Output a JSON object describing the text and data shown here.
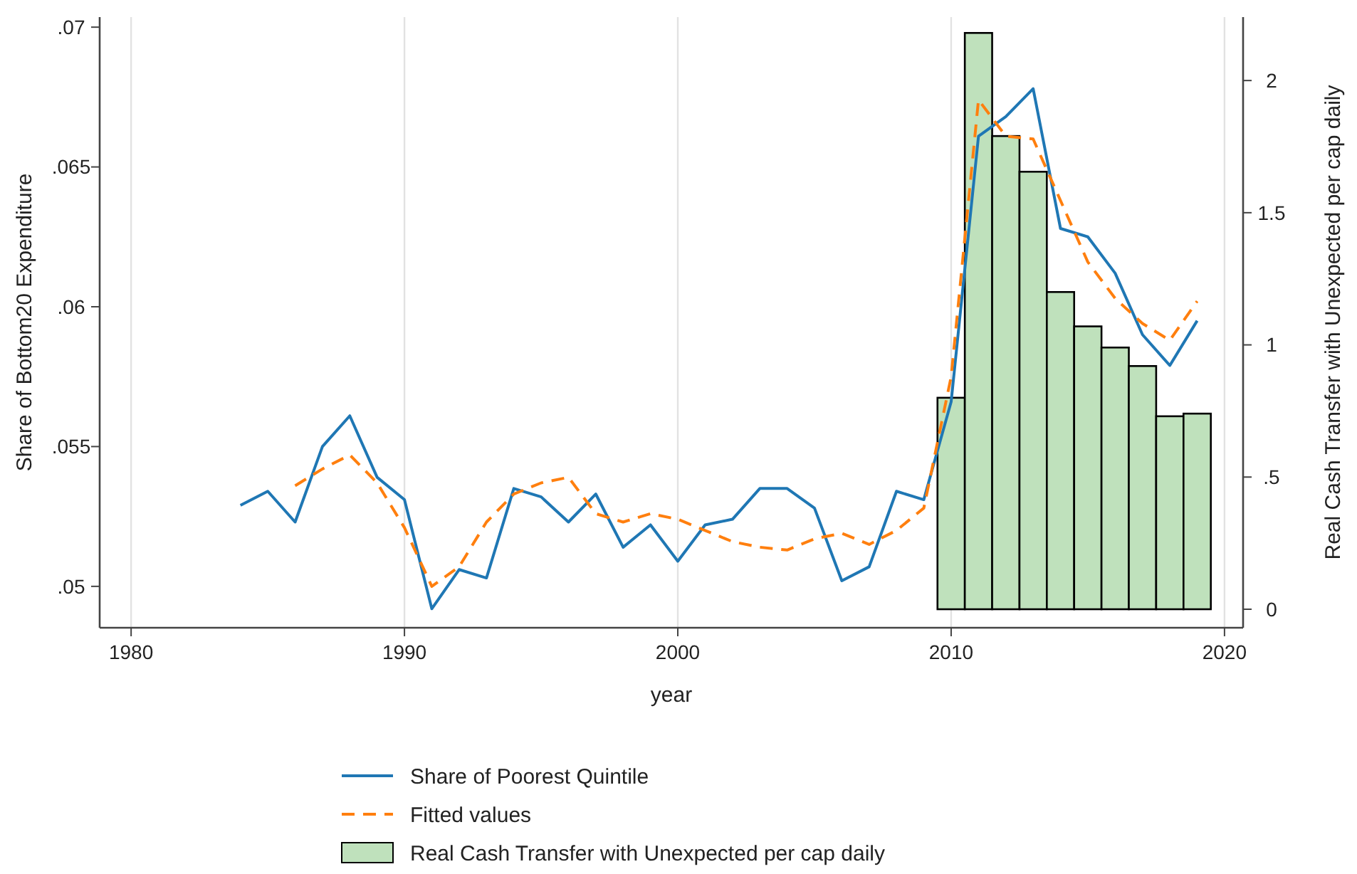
{
  "chart_data": {
    "type": "line",
    "xlabel": "year",
    "ylabel": "Share of Bottom20 Expenditure",
    "y2label": "Real Cash Transfer with Unexpected per cap daily",
    "xlim": [
      1978.85,
      2020.68
    ],
    "xticks": [
      1980,
      1990,
      2000,
      2010,
      2020
    ],
    "ylim": [
      0.04852,
      0.07036
    ],
    "yticks": [
      {
        "value": 0.05,
        "label": ".05"
      },
      {
        "value": 0.055,
        "label": ".055"
      },
      {
        "value": 0.06,
        "label": ".06"
      },
      {
        "value": 0.065,
        "label": ".065"
      },
      {
        "value": 0.07,
        "label": ".07"
      }
    ],
    "y2lim": [
      -0.07,
      2.24
    ],
    "y2ticks": [
      0,
      {
        "value": 0.5,
        "label": ".5"
      },
      1,
      {
        "value": 1.5,
        "label": "1.5"
      },
      2
    ],
    "grid": "x",
    "legend": "bottom",
    "marker": "none",
    "series": [
      {
        "name": "Share of Poorest Quintile",
        "color": "#1f77b4",
        "line_style": "solid",
        "x": [
          1984,
          1985,
          1986,
          1987,
          1988,
          1989,
          1990,
          1991,
          1992,
          1993,
          1994,
          1995,
          1996,
          1997,
          1998,
          1999,
          2000,
          2001,
          2002,
          2003,
          2004,
          2005,
          2006,
          2007,
          2008,
          2009,
          2010,
          2011,
          2012,
          2013,
          2014,
          2015,
          2016,
          2017,
          2018,
          2019
        ],
        "values": [
          0.0529,
          0.0534,
          0.0523,
          0.055,
          0.0561,
          0.0539,
          0.0531,
          0.0492,
          0.0506,
          0.0503,
          0.0535,
          0.0532,
          0.0523,
          0.0533,
          0.0514,
          0.0522,
          0.0509,
          0.0522,
          0.0524,
          0.0535,
          0.0535,
          0.0528,
          0.0502,
          0.0507,
          0.0534,
          0.0531,
          0.0566,
          0.0661,
          0.0668,
          0.0678,
          0.0628,
          0.0625,
          0.0612,
          0.059,
          0.0579,
          0.0595
        ]
      },
      {
        "name": "Fitted values",
        "color": "#ff7f0e",
        "line_style": "dashed",
        "x": [
          1986,
          1987,
          1988,
          1989,
          1990,
          1991,
          1992,
          1993,
          1994,
          1995,
          1996,
          1997,
          1998,
          1999,
          2000,
          2001,
          2002,
          2003,
          2004,
          2005,
          2006,
          2007,
          2008,
          2009,
          2010,
          2011,
          2012,
          2013,
          2014,
          2015,
          2016,
          2017,
          2018,
          2019
        ],
        "values": [
          0.0536,
          0.0542,
          0.0547,
          0.0537,
          0.0521,
          0.05,
          0.0507,
          0.0523,
          0.0533,
          0.0537,
          0.0539,
          0.0526,
          0.0523,
          0.0526,
          0.0524,
          0.052,
          0.0516,
          0.0514,
          0.0513,
          0.0517,
          0.0519,
          0.0515,
          0.052,
          0.0528,
          0.0575,
          0.0674,
          0.0661,
          0.066,
          0.0638,
          0.0616,
          0.0603,
          0.0594,
          0.0588,
          0.0602
        ]
      },
      {
        "name": "Real Cash Transfer with Unexpected per cap daily",
        "type": "bar",
        "axis": "y2",
        "color": "#bfe1bc",
        "x": [
          2010,
          2011,
          2012,
          2013,
          2014,
          2015,
          2016,
          2017,
          2018,
          2019
        ],
        "values": [
          0.8,
          2.18,
          1.79,
          1.655,
          1.2,
          1.07,
          0.99,
          0.92,
          0.73,
          0.74
        ]
      }
    ]
  }
}
